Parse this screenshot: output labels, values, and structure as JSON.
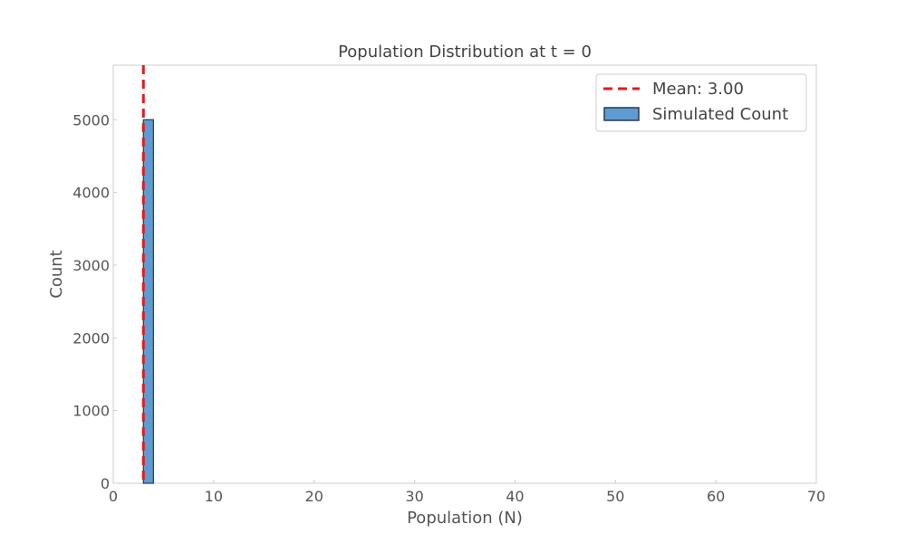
{
  "chart_data": {
    "type": "bar",
    "title": "Population Distribution at t = 0",
    "xlabel": "Population (N)",
    "ylabel": "Count",
    "xlim": [
      0,
      70
    ],
    "ylim": [
      0,
      5750
    ],
    "xticks": [
      0,
      10,
      20,
      30,
      40,
      50,
      60,
      70
    ],
    "yticks": [
      0,
      1000,
      2000,
      3000,
      4000,
      5000
    ],
    "grid": false,
    "legend_position": "top-right",
    "bins": [
      {
        "x0": 3,
        "x1": 4,
        "count": 5000
      }
    ],
    "mean": {
      "value": 3.0,
      "label": "Mean: 3.00"
    },
    "series": [
      {
        "name": "Mean: 3.00",
        "kind": "vline",
        "color": "#e31a1c"
      },
      {
        "name": "Simulated Count",
        "kind": "hist",
        "color": "#5d9bd0"
      }
    ]
  }
}
